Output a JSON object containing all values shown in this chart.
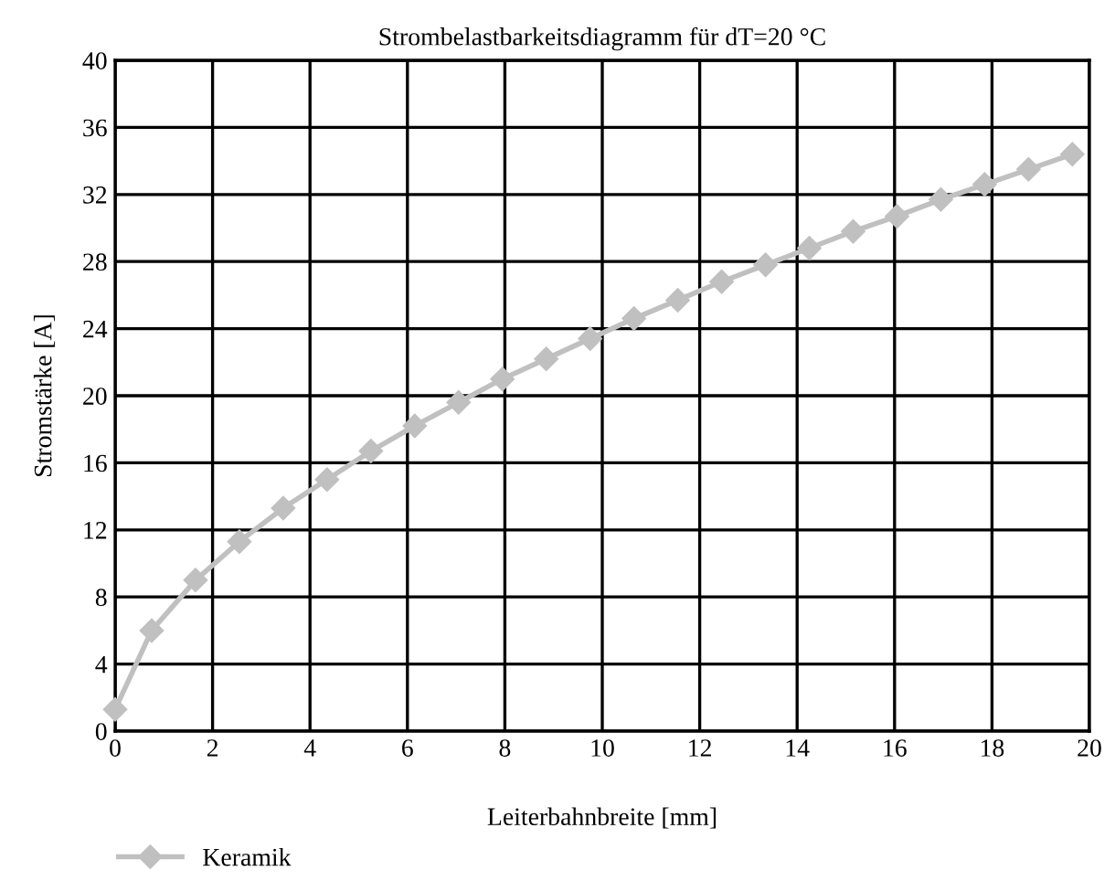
{
  "chart_data": {
    "type": "line",
    "title": "Strombelastbarkeitsdiagramm für dT=20 °C",
    "xlabel": "Leiterbahnbreite [mm]",
    "ylabel": "Stromstärke [A]",
    "x": [
      0,
      0.75,
      1.65,
      2.55,
      3.45,
      4.35,
      5.25,
      6.15,
      7.05,
      7.95,
      8.85,
      9.75,
      10.65,
      11.55,
      12.45,
      13.35,
      14.25,
      15.15,
      16.05,
      16.95,
      17.85,
      18.75,
      19.65
    ],
    "series": [
      {
        "name": "Keramik",
        "color": "#c0c0c0",
        "values": [
          1.3,
          6.0,
          9.0,
          11.3,
          13.3,
          15.0,
          16.7,
          18.2,
          19.6,
          21.0,
          22.2,
          23.4,
          24.6,
          25.7,
          26.8,
          27.8,
          28.8,
          29.8,
          30.7,
          31.7,
          32.6,
          33.5,
          34.4
        ]
      }
    ],
    "xlim": [
      0,
      20
    ],
    "xticks": [
      0,
      2,
      4,
      6,
      8,
      10,
      12,
      14,
      16,
      18,
      20
    ],
    "ylim": [
      0,
      40
    ],
    "yticks": [
      0,
      4,
      8,
      12,
      16,
      20,
      24,
      28,
      32,
      36,
      40
    ],
    "grid": true,
    "legend": "bottom left",
    "marker": "diamond",
    "line_style": "solid"
  }
}
